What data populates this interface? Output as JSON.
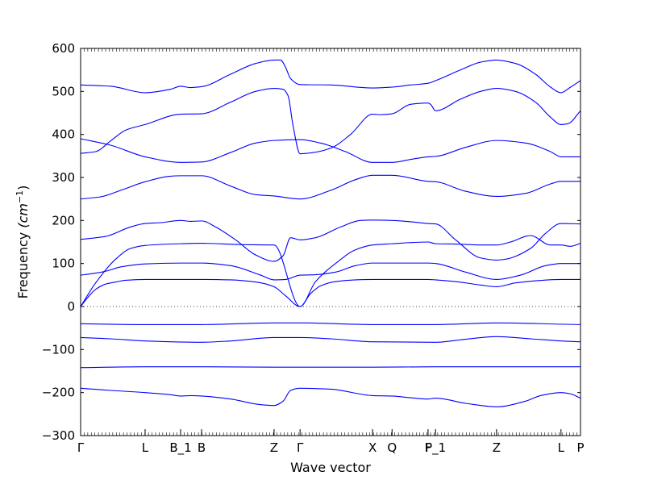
{
  "chart_data": {
    "type": "line",
    "title": "",
    "xlabel": "Wave vector",
    "ylabel": "Frequency (cm⁻¹)",
    "ylabel_parts": {
      "text": "Frequency ",
      "unit_base": "(cm",
      "unit_exp": "−1",
      "unit_close": ")"
    },
    "ylim": [
      -300,
      600
    ],
    "yticks": [
      -300,
      -200,
      -100,
      0,
      100,
      200,
      300,
      400,
      500,
      600
    ],
    "xlim": [
      0,
      100
    ],
    "zero_line": true,
    "line_color": "#0000ff",
    "high_symmetry_points": [
      {
        "label": "Γ",
        "x": 0
      },
      {
        "label": "L",
        "x": 12.9
      },
      {
        "label": "B_1",
        "x": 20.0
      },
      {
        "label": "B",
        "x": 24.2
      },
      {
        "label": "Z",
        "x": 38.7
      },
      {
        "label": "Γ",
        "x": 43.9
      },
      {
        "label": "X",
        "x": 58.4
      },
      {
        "label": "Q",
        "x": 62.3
      },
      {
        "label": "F",
        "x": 69.5
      },
      {
        "label": "P_1",
        "x": 71.0
      },
      {
        "label": "Z",
        "x": 83.2
      },
      {
        "label": "L",
        "x": 96.1
      },
      {
        "label": "P",
        "x": 100
      }
    ],
    "series": [
      {
        "x": [
          0,
          6,
          12.9,
          18,
          20,
          22,
          24.2,
          30,
          36,
          38.7,
          40.5,
          42,
          43.9,
          50,
          58.4,
          62.3,
          66,
          69.5,
          71,
          77,
          83.2,
          89,
          92,
          96.1,
          98,
          100
        ],
        "y": [
          -190,
          -195,
          -200,
          -205,
          -208,
          -207,
          -208,
          -215,
          -228,
          -230,
          -220,
          -195,
          -190,
          -192,
          -207,
          -208,
          -212,
          -215,
          -213,
          -225,
          -233,
          -220,
          -207,
          -200,
          -203,
          -213
        ]
      },
      {
        "x": [
          0,
          12.9,
          24.2,
          38.7,
          43.9,
          58.4,
          71,
          83.2,
          96.1,
          100
        ],
        "y": [
          -142,
          -140,
          -140,
          -141,
          -141,
          -141,
          -140,
          -140,
          -140,
          -140
        ]
      },
      {
        "x": [
          0,
          6,
          12.9,
          24.2,
          30,
          38.7,
          43.9,
          50,
          58.4,
          71,
          77,
          83.2,
          90,
          96.1,
          100
        ],
        "y": [
          -72,
          -75,
          -80,
          -83,
          -80,
          -72,
          -72,
          -75,
          -82,
          -83,
          -76,
          -70,
          -75,
          -80,
          -82
        ]
      },
      {
        "x": [
          0,
          12.9,
          24.2,
          38.7,
          43.9,
          58.4,
          71,
          83.2,
          96.1,
          100
        ],
        "y": [
          -40,
          -42,
          -42,
          -38,
          -38,
          -42,
          -42,
          -38,
          -41,
          -42
        ]
      },
      {
        "x": [
          0,
          1.5,
          3,
          5,
          7,
          9,
          12.9,
          20,
          24.2,
          30,
          35,
          38.7,
          41,
          43.9,
          46,
          48,
          51,
          55,
          58.4,
          62.3,
          69.5,
          71,
          75,
          80,
          83.2,
          87,
          96.1,
          100
        ],
        "y": [
          0,
          22,
          40,
          52,
          57,
          61,
          63,
          63,
          63,
          62,
          57,
          46,
          25,
          0,
          30,
          48,
          58,
          62,
          63,
          63,
          63,
          62,
          58,
          50,
          46,
          55,
          63,
          63
        ]
      },
      {
        "x": [
          0,
          2,
          5,
          8,
          12.9,
          20,
          24.2,
          30,
          36,
          38.7,
          41,
          43.9,
          47,
          51,
          55,
          58.4,
          62.3,
          69.5,
          71,
          77,
          83.2,
          88,
          93,
          96.1,
          100
        ],
        "y": [
          73,
          76,
          82,
          92,
          99,
          101,
          101,
          95,
          73,
          62,
          63,
          73,
          74,
          80,
          95,
          101,
          101,
          101,
          100,
          80,
          63,
          73,
          95,
          100,
          100
        ]
      },
      {
        "x": [
          0,
          3,
          7,
          10,
          12.9,
          20,
          24.2,
          32,
          38.7,
          43.9,
          47,
          51,
          55,
          58.4,
          62.3,
          69.5,
          71,
          76,
          80,
          83.2,
          86,
          90,
          94,
          96.1,
          98,
          100
        ],
        "y": [
          0,
          55,
          110,
          135,
          142,
          146,
          147,
          144,
          143,
          0,
          58,
          100,
          132,
          143,
          146,
          150,
          146,
          145,
          143,
          143,
          150,
          165,
          143,
          143,
          140,
          147
        ]
      },
      {
        "x": [
          0,
          5,
          10,
          12.9,
          16,
          20,
          22,
          24.2,
          27,
          31,
          35,
          38.7,
          40.5,
          42,
          43.9,
          47,
          52,
          56,
          58.4,
          62.3,
          66,
          69.5,
          71,
          75,
          80,
          83.2,
          85,
          90,
          93,
          96.1,
          100
        ],
        "y": [
          156,
          163,
          185,
          193,
          195,
          200,
          198,
          199,
          185,
          155,
          120,
          105,
          118,
          160,
          155,
          160,
          185,
          200,
          201,
          200,
          197,
          193,
          192,
          155,
          113,
          108,
          110,
          135,
          170,
          193,
          192
        ]
      },
      {
        "x": [
          0,
          4,
          8,
          12.9,
          18,
          20,
          24.2,
          30,
          35,
          38.7,
          43.9,
          50,
          55,
          58.4,
          62.3,
          69.5,
          71,
          77,
          83.2,
          89,
          94,
          96.1,
          100
        ],
        "y": [
          250,
          255,
          270,
          290,
          303,
          304,
          304,
          280,
          260,
          257,
          250,
          270,
          295,
          305,
          305,
          291,
          290,
          268,
          256,
          263,
          285,
          291,
          291
        ]
      },
      {
        "x": [
          0,
          6,
          12.9,
          20,
          24.2,
          30,
          35,
          38.7,
          43.9,
          48,
          53,
          58.4,
          62.3,
          66,
          69.5,
          71,
          77,
          83.2,
          89,
          94,
          96.1,
          100
        ],
        "y": [
          390,
          375,
          348,
          335,
          336,
          358,
          380,
          386,
          388,
          380,
          360,
          335,
          335,
          342,
          348,
          349,
          370,
          386,
          380,
          360,
          348,
          348
        ]
      },
      {
        "x": [
          0,
          3,
          6,
          9,
          12.9,
          20,
          24.2,
          30,
          35,
          38.7,
          40.5,
          41.5,
          42.5,
          43.9,
          46,
          50,
          54,
          58.4,
          60,
          62.3,
          66,
          69.5,
          70,
          71,
          76,
          80,
          83.2,
          87,
          91,
          94,
          96.1,
          97.5,
          100
        ],
        "y": [
          356,
          360,
          385,
          410,
          423,
          447,
          448,
          475,
          500,
          507,
          505,
          490,
          420,
          355,
          357,
          368,
          400,
          447,
          446,
          448,
          470,
          473,
          470,
          455,
          482,
          500,
          507,
          500,
          475,
          440,
          423,
          425,
          455
        ]
      },
      {
        "x": [
          0,
          6,
          12.9,
          18,
          20,
          22,
          24.2,
          30,
          35,
          38.7,
          40,
          41,
          42,
          43.9,
          50,
          58.4,
          62.3,
          66,
          69.5,
          71,
          76,
          80,
          83.2,
          87,
          91,
          94,
          96.1,
          98,
          100
        ],
        "y": [
          515,
          512,
          497,
          505,
          512,
          509,
          511,
          540,
          565,
          573,
          573,
          556,
          530,
          516,
          515,
          508,
          510,
          515,
          519,
          525,
          550,
          568,
          573,
          565,
          540,
          510,
          497,
          510,
          525
        ]
      }
    ]
  }
}
